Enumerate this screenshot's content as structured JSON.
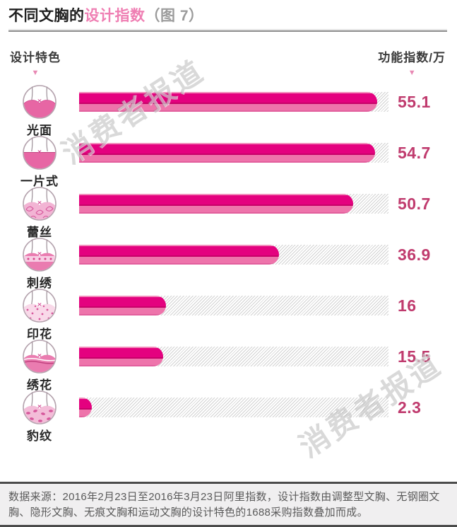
{
  "header": {
    "title_black": "不同文胸的",
    "title_pink": "设计指数",
    "title_suffix": "（图 7）"
  },
  "columns": {
    "left_label": "设计特色",
    "right_label": "功能指数/万",
    "arrow_glyph": "▼"
  },
  "watermark": {
    "text": "消费者报道"
  },
  "chart_data": {
    "type": "bar",
    "orientation": "horizontal",
    "title": "不同文胸的设计指数（图7）",
    "category_axis_label": "设计特色",
    "value_axis_label": "功能指数/万",
    "categories": [
      "光面",
      "一片式",
      "蕾丝",
      "刺绣",
      "印花",
      "绣花",
      "豹纹"
    ],
    "values": [
      55.1,
      54.7,
      50.7,
      36.9,
      16,
      15.5,
      2.3
    ],
    "icons": [
      "bra-smooth-icon",
      "bra-one-piece-icon",
      "bra-lace-icon",
      "bra-embroidery-icon",
      "bra-print-icon",
      "bra-stitched-flower-icon",
      "bra-leopard-icon"
    ],
    "xlim": [
      0,
      57.2
    ],
    "grid": false,
    "legend": false,
    "colors": {
      "bar_main": "#e4017f",
      "bar_bottom": "#ee74ab",
      "value_label": "#c03b6e",
      "track_hatch": "#d2d2d2",
      "title_accent": "#ef7fb3"
    }
  },
  "footer": {
    "source_text": "数据来源：2016年2月23日至2016年3月23日阿里指数，设计指数由调整型文胸、无钢圈文胸、隐形文胸、无痕文胸和运动文胸的设计特色的1688采购指数叠加而成。"
  }
}
